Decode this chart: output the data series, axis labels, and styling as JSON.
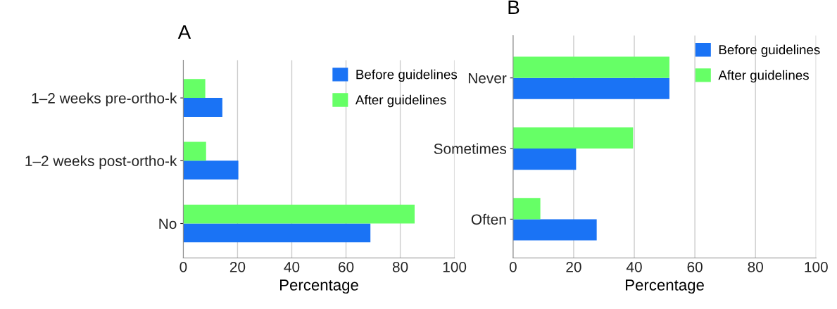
{
  "chart_data": [
    {
      "type": "bar",
      "title": "A",
      "orientation": "horizontal",
      "xlabel": "Percentage",
      "categories": [
        "1–2 weeks pre-ortho-k",
        "1–2 weeks post-ortho-k",
        "No"
      ],
      "series": [
        {
          "name": "Before guidelines",
          "color": "#1a73f5",
          "values": [
            14.4,
            20.3,
            69.0
          ]
        },
        {
          "name": "After guidelines",
          "color": "#66ff66",
          "values": [
            8.1,
            8.4,
            85.3
          ]
        }
      ],
      "xlim": [
        0,
        100
      ],
      "xticks": [
        0,
        20,
        40,
        60,
        80,
        100
      ],
      "grid": "x",
      "legend": "top right"
    },
    {
      "type": "bar",
      "title": "B",
      "orientation": "horizontal",
      "xlabel": "Percentage",
      "categories": [
        "Never",
        "Sometimes",
        "Often"
      ],
      "series": [
        {
          "name": "Before guidelines",
          "color": "#1a73f5",
          "values": [
            51.6,
            20.8,
            27.6
          ]
        },
        {
          "name": "After guidelines",
          "color": "#66ff66",
          "values": [
            51.6,
            39.6,
            9.0
          ]
        }
      ],
      "xlim": [
        0,
        100
      ],
      "xticks": [
        0,
        20,
        40,
        60,
        80,
        100
      ],
      "grid": "x",
      "legend": "top right"
    }
  ]
}
